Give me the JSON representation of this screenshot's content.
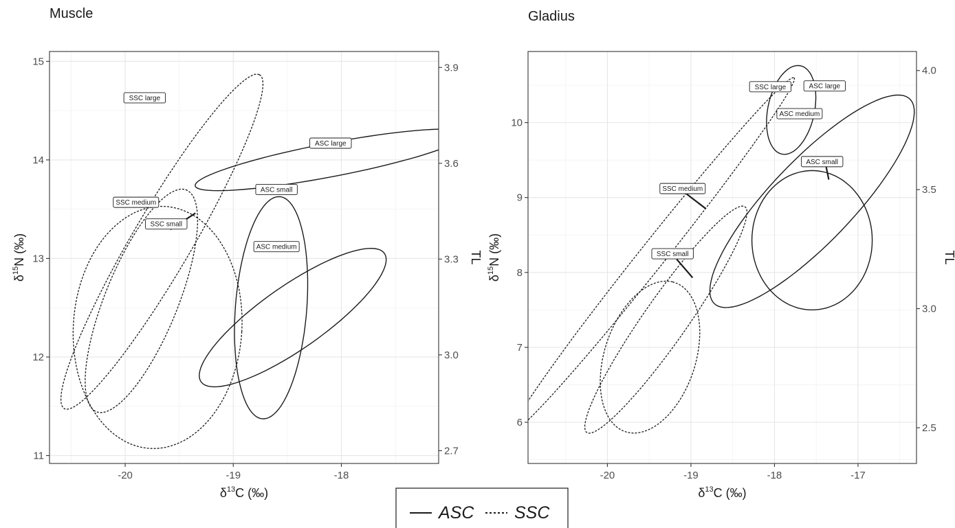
{
  "legend": {
    "entries": [
      {
        "name": "ASC",
        "linetype": "solid"
      },
      {
        "name": "SSC",
        "linetype": "dashed"
      }
    ]
  },
  "chart_data": [
    {
      "type": "ellipse",
      "title": "Muscle",
      "xlabel": {
        "pre": "δ",
        "sup": "13",
        "post": "C (‰)"
      },
      "ylabel": {
        "pre": "δ",
        "sup": "15",
        "post": "N (‰)"
      },
      "y2label": "TL",
      "xlim": [
        -20.7,
        -17.1
      ],
      "ylim": [
        10.92,
        15.1
      ],
      "y2lim": [
        2.66,
        3.95
      ],
      "x_ticks": [
        -20,
        -19,
        -18
      ],
      "y_ticks": [
        11,
        12,
        13,
        14,
        15
      ],
      "y2_ticks": [
        2.7,
        3.0,
        3.3,
        3.6,
        3.9
      ],
      "grid": true,
      "series": [
        {
          "name": "ASC large",
          "group": "ASC",
          "cx": -18.1,
          "cy": 14.0,
          "rx": 1.28,
          "ry": 0.17,
          "angle": -11.9,
          "label_pos": [
            -18.1,
            14.17
          ],
          "leader_to": null
        },
        {
          "name": "ASC small",
          "group": "ASC",
          "cx": -18.65,
          "cy": 12.5,
          "rx": 0.33,
          "ry": 1.13,
          "angle": 4.0,
          "label_pos": [
            -18.6,
            13.7
          ],
          "leader_to": null
        },
        {
          "name": "ASC medium",
          "group": "ASC",
          "cx": -18.45,
          "cy": 12.4,
          "rx": 1.07,
          "ry": 0.31,
          "angle": -38.0,
          "label_pos": [
            -18.6,
            13.12
          ],
          "leader_to": null
        },
        {
          "name": "SSC large",
          "group": "SSC",
          "cx": -19.66,
          "cy": 13.17,
          "rx": 1.92,
          "ry": 0.28,
          "angle": -62.0,
          "label_pos": [
            -19.82,
            14.63
          ],
          "leader_to": null
        },
        {
          "name": "SSC medium",
          "group": "SSC",
          "cx": -19.85,
          "cy": 12.57,
          "rx": 1.2,
          "ry": 0.34,
          "angle": -70.0,
          "label_pos": [
            -19.9,
            13.57
          ],
          "leader_to": null
        },
        {
          "name": "SSC small",
          "group": "SSC",
          "cx": -19.7,
          "cy": 12.3,
          "rx": 0.78,
          "ry": 1.23,
          "angle": 3.0,
          "label_pos": [
            -19.62,
            13.35
          ],
          "leader_to": [
            -19.35,
            13.46
          ]
        }
      ]
    },
    {
      "type": "ellipse",
      "title": "Gladius",
      "xlabel": {
        "pre": "δ",
        "sup": "13",
        "post": "C (‰)"
      },
      "ylabel": {
        "pre": "δ",
        "sup": "15",
        "post": "N (‰)"
      },
      "y2label": "TL",
      "xlim": [
        -20.95,
        -16.3
      ],
      "ylim": [
        5.45,
        10.95
      ],
      "y2lim": [
        2.35,
        4.08
      ],
      "x_ticks": [
        -20,
        -19,
        -18,
        -17
      ],
      "y_ticks": [
        6,
        7,
        8,
        9,
        10
      ],
      "y2_ticks": [
        2.5,
        3.0,
        3.5,
        4.0
      ],
      "grid": true,
      "series": [
        {
          "name": "SSC large",
          "group": "SSC",
          "cx": -19.45,
          "cy": 8.24,
          "rx": 2.9,
          "ry": 0.16,
          "angle": -54.5,
          "label_pos": [
            -18.05,
            10.48
          ],
          "leader_to": null
        },
        {
          "name": "ASC large",
          "group": "ASC",
          "cx": -17.8,
          "cy": 10.17,
          "rx": 0.28,
          "ry": 0.6,
          "angle": 10.0,
          "label_pos": [
            -17.4,
            10.49
          ],
          "leader_to": null
        },
        {
          "name": "ASC medium",
          "group": "ASC",
          "cx": -17.55,
          "cy": 8.95,
          "rx": 1.8,
          "ry": 0.52,
          "angle": -50.0,
          "label_pos": [
            -17.7,
            10.12
          ],
          "leader_to": null
        },
        {
          "name": "ASC small",
          "group": "ASC",
          "cx": -17.55,
          "cy": 8.43,
          "rx": 0.72,
          "ry": 0.93,
          "angle": 0.0,
          "label_pos": [
            -17.43,
            9.48
          ],
          "leader_to": [
            -17.35,
            9.24
          ]
        },
        {
          "name": "SSC medium",
          "group": "SSC",
          "cx": -19.3,
          "cy": 7.37,
          "rx": 1.78,
          "ry": 0.27,
          "angle": -58.0,
          "label_pos": [
            -19.1,
            9.12
          ],
          "leader_to": [
            -18.82,
            8.85
          ]
        },
        {
          "name": "SSC small",
          "group": "SSC",
          "cx": -19.49,
          "cy": 6.87,
          "rx": 1.04,
          "ry": 0.55,
          "angle": -75.0,
          "label_pos": [
            -19.22,
            8.25
          ],
          "leader_to": [
            -18.98,
            7.93
          ]
        }
      ]
    }
  ]
}
